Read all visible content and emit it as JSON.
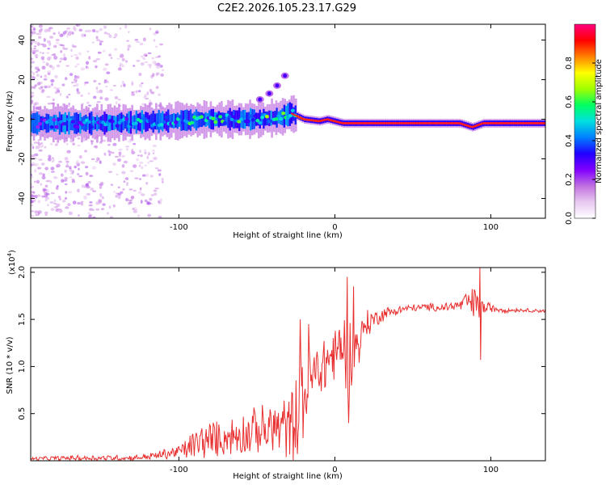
{
  "title": "C2E2.2026.105.23.17.G29",
  "colors": {
    "axis": "#000000",
    "snr_line": "#e83030",
    "track_core": "#ff2020"
  },
  "chart_data": [
    {
      "type": "heatmap",
      "name": "spectrogram",
      "xlabel": "Height of straight line (km)",
      "ylabel": "Frequency (Hz)",
      "xlim": [
        -195,
        135
      ],
      "ylim": [
        -50,
        48
      ],
      "x_ticks": [
        -100,
        0,
        100
      ],
      "x_tick_labels": [
        "-100",
        "0",
        "100"
      ],
      "y_ticks": [
        -40,
        -20,
        0,
        20,
        40
      ],
      "y_tick_labels": [
        "-40",
        "-20",
        "0",
        "20",
        "40"
      ],
      "colorbar": {
        "label": "Normalized spectral amplitude",
        "range": [
          0,
          1
        ],
        "ticks": [
          0.0,
          0.2,
          0.4,
          0.6,
          0.8
        ],
        "tick_labels": [
          "0.0",
          "0.2",
          "0.4",
          "0.6",
          "0.8"
        ],
        "colormap": [
          "#ffffff",
          "#e8c8f0",
          "#c070e0",
          "#8000ff",
          "#2000ff",
          "#0080ff",
          "#00e0e0",
          "#00ff60",
          "#a0ff00",
          "#ffff00",
          "#ff8000",
          "#ff0000",
          "#ff0080"
        ]
      },
      "track": {
        "heights_km": [
          -195,
          -150,
          -110,
          -80,
          -50,
          -35,
          -28,
          -20,
          -10,
          -5,
          0,
          5,
          20,
          50,
          80,
          88,
          95,
          110,
          135
        ],
        "frequency_hz": [
          -2,
          -2,
          -1,
          0,
          0,
          1,
          3,
          0,
          -1,
          0,
          -1,
          -2,
          -2,
          -2,
          -2,
          -4,
          -2,
          -2,
          -2
        ],
        "amplitude": [
          0.35,
          0.4,
          0.45,
          0.5,
          0.5,
          0.55,
          0.7,
          0.85,
          0.9,
          0.95,
          0.9,
          0.95,
          0.95,
          0.95,
          0.95,
          0.9,
          0.95,
          0.95,
          0.95
        ]
      },
      "secondary_track": {
        "heights_km": [
          -48,
          -42,
          -37,
          -32
        ],
        "frequency_hz": [
          10,
          13,
          17,
          22
        ]
      }
    },
    {
      "type": "line",
      "name": "snr",
      "xlabel": "Height of straight line (km)",
      "ylabel": "SNR (10 * v/v)",
      "y_multiplier": "(x10",
      "y_exponent": "4",
      "xlim": [
        -195,
        135
      ],
      "ylim": [
        0.0,
        2.05
      ],
      "x_ticks": [
        -100,
        0,
        100
      ],
      "x_tick_labels": [
        "-100",
        "0",
        "100"
      ],
      "y_ticks": [
        0.5,
        1.0,
        1.5,
        2.0
      ],
      "y_tick_labels": [
        "0.5",
        "1.0",
        "1.5",
        "2.0"
      ],
      "envelope": {
        "heights_km": [
          -195,
          -160,
          -130,
          -115,
          -100,
          -85,
          -70,
          -55,
          -40,
          -30,
          -25,
          -20,
          -15,
          -10,
          -5,
          0,
          5,
          10,
          15,
          20,
          30,
          40,
          50,
          60,
          70,
          80,
          85,
          90,
          95,
          100,
          110,
          120,
          135
        ],
        "mean": [
          0.02,
          0.03,
          0.03,
          0.05,
          0.1,
          0.2,
          0.25,
          0.3,
          0.35,
          0.35,
          0.45,
          0.7,
          0.85,
          0.95,
          1.05,
          1.15,
          1.2,
          1.1,
          1.25,
          1.45,
          1.55,
          1.6,
          1.62,
          1.63,
          1.63,
          1.65,
          1.68,
          1.65,
          1.62,
          1.62,
          1.6,
          1.6,
          1.59
        ],
        "spread": [
          0.02,
          0.03,
          0.03,
          0.04,
          0.08,
          0.2,
          0.2,
          0.25,
          0.3,
          0.35,
          0.45,
          0.5,
          0.35,
          0.35,
          0.3,
          0.3,
          0.4,
          0.45,
          0.25,
          0.15,
          0.08,
          0.05,
          0.04,
          0.04,
          0.05,
          0.06,
          0.12,
          0.2,
          0.1,
          0.05,
          0.03,
          0.02,
          0.02
        ]
      },
      "peaks": [
        {
          "x": -22,
          "y": 1.5
        },
        {
          "x": -17,
          "y": 1.45
        },
        {
          "x": 8,
          "y": 1.95
        },
        {
          "x": 12,
          "y": 1.85
        },
        {
          "x": 93,
          "y": 2.05
        },
        {
          "x": 93.5,
          "y": 1.07
        },
        {
          "x": 9,
          "y": 0.4
        }
      ]
    }
  ]
}
